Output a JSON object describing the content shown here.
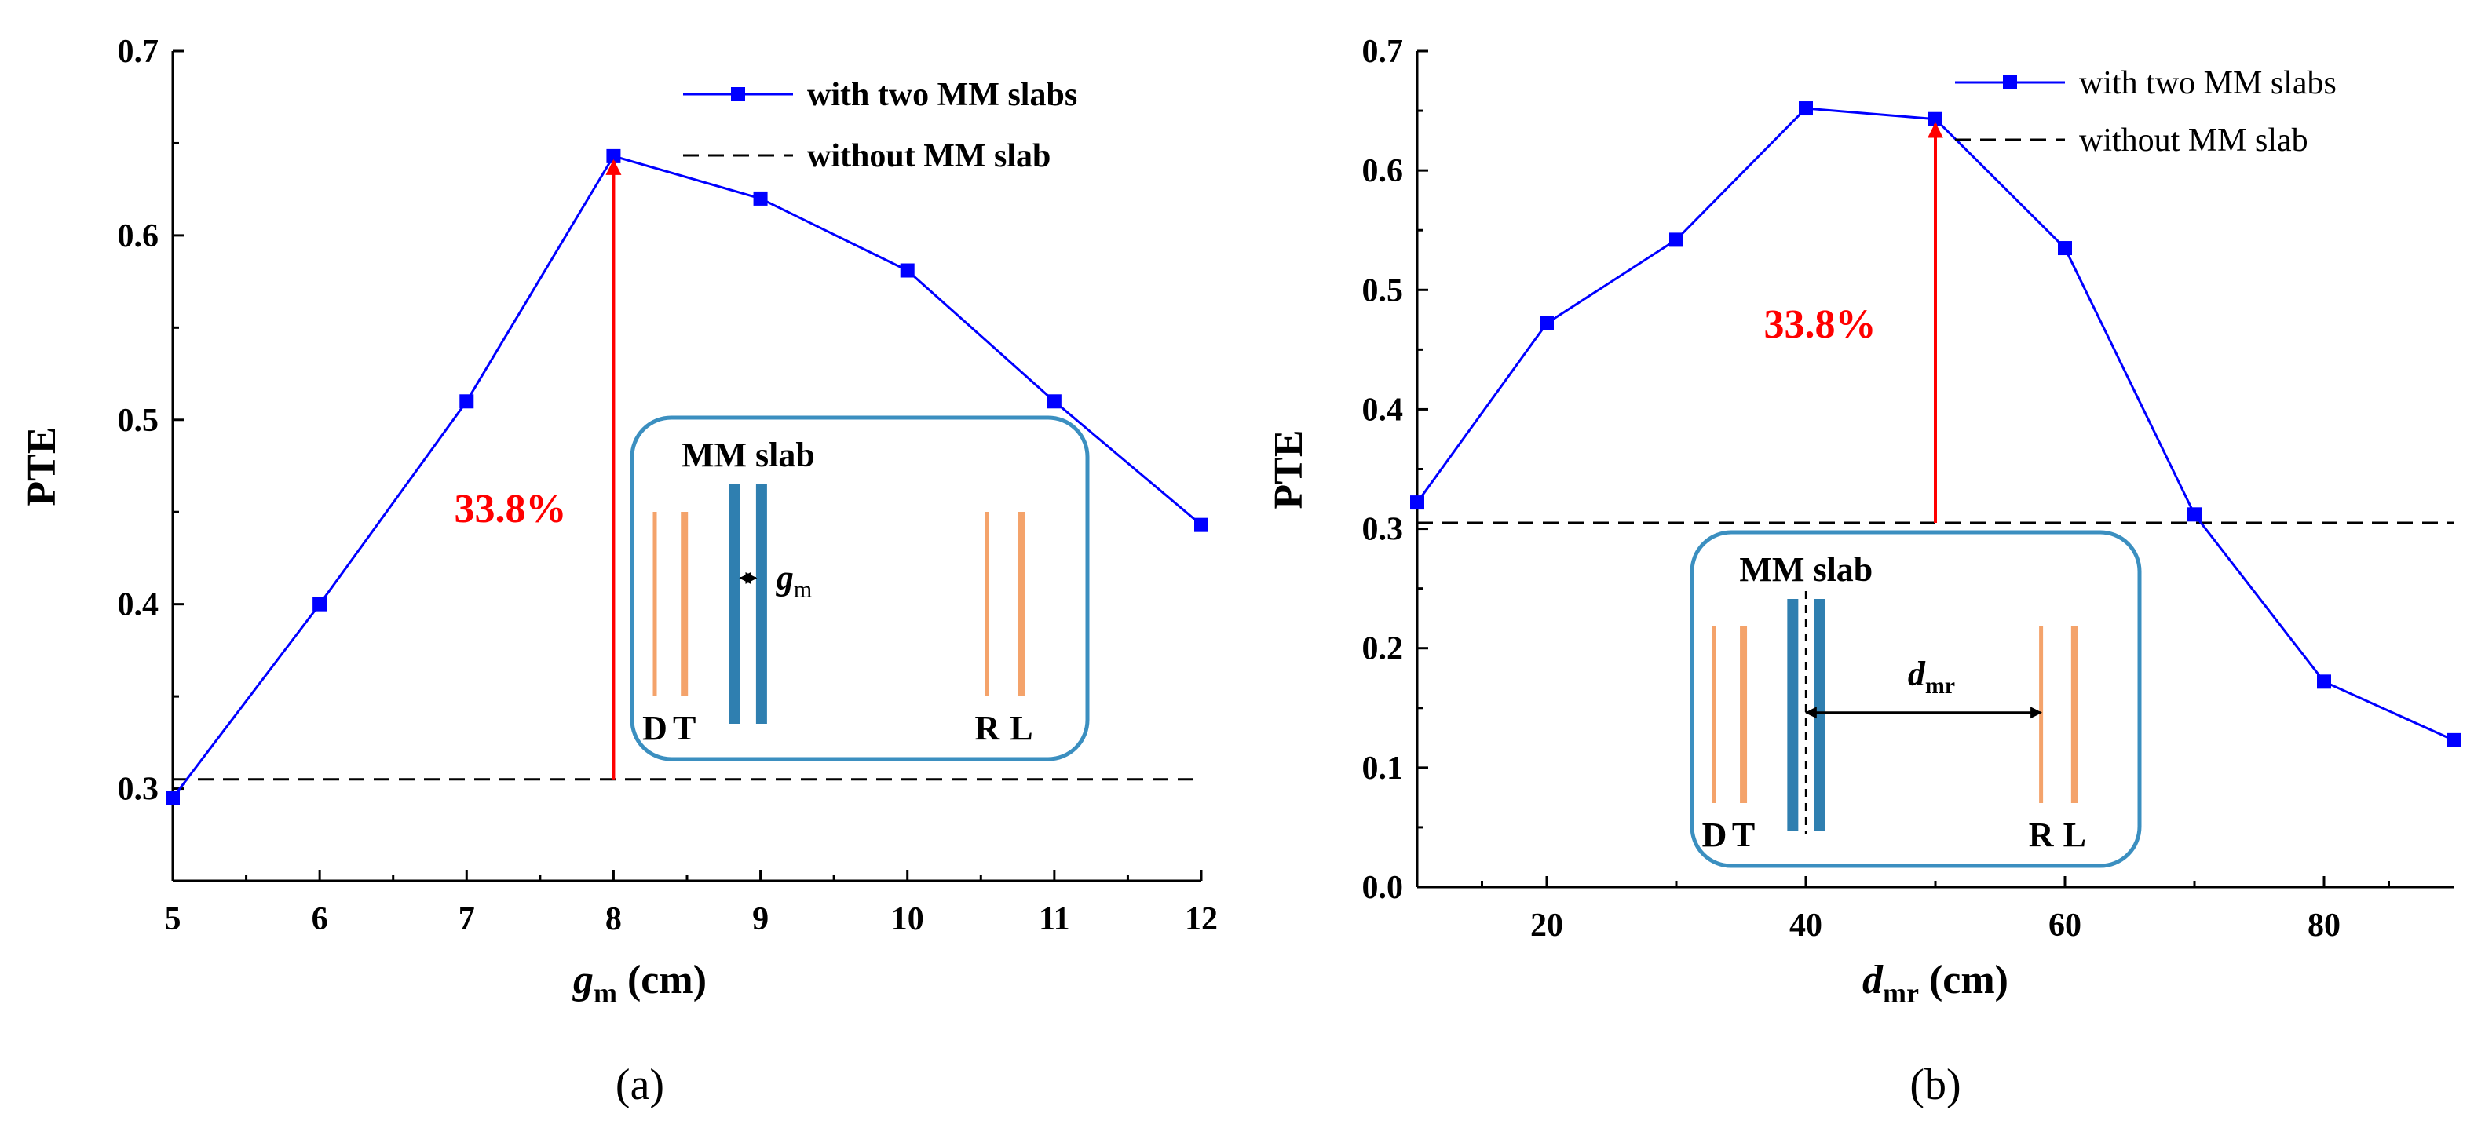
{
  "colors": {
    "series": "#0000ff",
    "baseline": "#000000",
    "arrow": "#ff0000",
    "inset_border": "#3b8fc0",
    "coil": "#f4a36b",
    "slab": "#2f7fb0"
  },
  "chart_data": [
    {
      "type": "line",
      "panel_label": "(a)",
      "xlabel_main": "g",
      "xlabel_sub": "m",
      "xlabel_unit": " (cm)",
      "ylabel": "PTE",
      "xlim": [
        5,
        12
      ],
      "ylim": [
        0.25,
        0.7
      ],
      "xticks": [
        5,
        6,
        7,
        8,
        9,
        10,
        11,
        12
      ],
      "xtick_labels": [
        "5",
        "6",
        "7",
        "8",
        "9",
        "10",
        "11",
        "12"
      ],
      "yticks": [
        0.3,
        0.4,
        0.5,
        0.6,
        0.7
      ],
      "ytick_labels": [
        "0.3",
        "0.4",
        "0.5",
        "0.6",
        "0.7"
      ],
      "series": [
        {
          "name": "with two MM slabs",
          "x": [
            5,
            6,
            7,
            8,
            9,
            10,
            11,
            12
          ],
          "values": [
            0.295,
            0.4,
            0.51,
            0.643,
            0.62,
            0.581,
            0.51,
            0.443
          ]
        }
      ],
      "baseline": {
        "name": "without MM slab",
        "value": 0.305
      },
      "annotation": {
        "text": "33.8%",
        "x": 8,
        "from": 0.305,
        "to": 0.643
      },
      "legend": {
        "position": "top-right",
        "bold": true
      },
      "inset": {
        "title": "MM slab",
        "gap_main": "g",
        "gap_sub": "m",
        "labels": [
          "D",
          "T",
          "R",
          "L"
        ]
      }
    },
    {
      "type": "line",
      "panel_label": "(b)",
      "xlabel_main": "d",
      "xlabel_sub": "mr",
      "xlabel_unit": " (cm)",
      "ylabel": "PTE",
      "xlim": [
        10,
        90
      ],
      "ylim": [
        0,
        0.7
      ],
      "xticks": [
        20,
        40,
        60,
        80
      ],
      "xtick_labels": [
        "20",
        "40",
        "60",
        "80"
      ],
      "yticks": [
        0.0,
        0.1,
        0.2,
        0.3,
        0.4,
        0.5,
        0.6,
        0.7
      ],
      "ytick_labels": [
        "0.0",
        "0.1",
        "0.2",
        "0.3",
        "0.4",
        "0.5",
        "0.6",
        "0.7"
      ],
      "series": [
        {
          "name": "with two MM slabs",
          "x": [
            10,
            20,
            30,
            40,
            50,
            60,
            70,
            80,
            90
          ],
          "values": [
            0.322,
            0.472,
            0.542,
            0.652,
            0.643,
            0.535,
            0.312,
            0.172,
            0.123
          ]
        }
      ],
      "baseline": {
        "name": "without MM slab",
        "value": 0.305
      },
      "annotation": {
        "text": "33.8%",
        "x": 50,
        "from": 0.305,
        "to": 0.643
      },
      "legend": {
        "position": "top-right",
        "bold": false
      },
      "inset": {
        "title": "MM slab",
        "gap_main": "d",
        "gap_sub": "mr",
        "labels": [
          "D",
          "T",
          "R",
          "L"
        ]
      }
    }
  ]
}
